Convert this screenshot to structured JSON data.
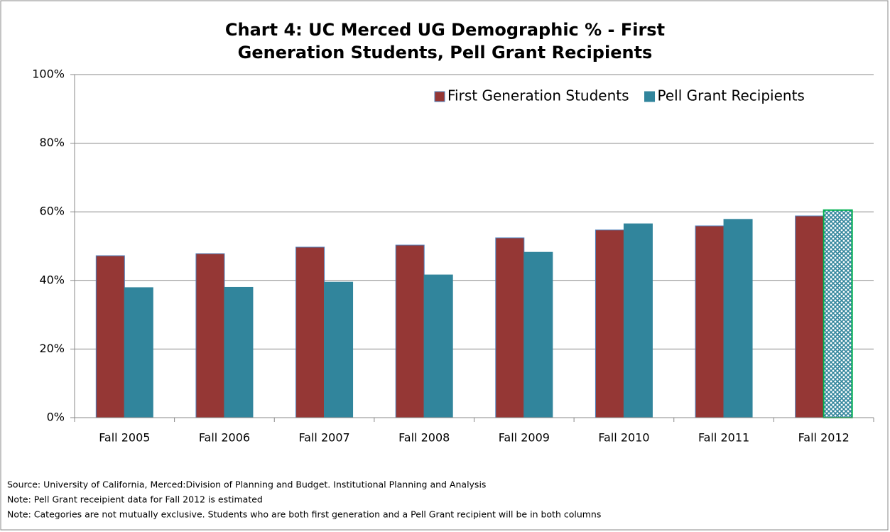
{
  "chart_data": {
    "type": "bar",
    "title": "Chart 4: UC Merced UG Demographic % - First Generation Students, Pell Grant Recipients",
    "categories": [
      "Fall 2005",
      "Fall 2006",
      "Fall 2007",
      "Fall 2008",
      "Fall 2009",
      "Fall 2010",
      "Fall 2011",
      "Fall 2012"
    ],
    "series": [
      {
        "name": "First Generation Students",
        "color": "#953735",
        "values": [
          47.2,
          47.8,
          49.7,
          50.3,
          52.4,
          54.7,
          55.9,
          58.8
        ]
      },
      {
        "name": "Pell Grant Recipients",
        "color": "#31859c",
        "values": [
          37.9,
          38.0,
          39.5,
          41.6,
          48.2,
          56.5,
          57.8,
          60.5
        ],
        "hatched_points": [
          7
        ]
      }
    ],
    "ylim": [
      0,
      100
    ],
    "yticks": [
      {
        "value": 0,
        "label": "0%"
      },
      {
        "value": 20,
        "label": "20%"
      },
      {
        "value": 40,
        "label": "40%"
      },
      {
        "value": 60,
        "label": "60%"
      },
      {
        "value": 80,
        "label": "80%"
      },
      {
        "value": 100,
        "label": "100%"
      }
    ],
    "grid": true,
    "legend": "top-right",
    "notes": [
      "Source: University of California, Merced:Division of Planning and Budget. Institutional Planning and Analysis",
      "Note: Pell Grant receipient data for Fall 2012 is estimated",
      "Note: Categories are not mutually exclusive.  Students who are both first generation and a Pell Grant recipient will be in both columns"
    ]
  }
}
